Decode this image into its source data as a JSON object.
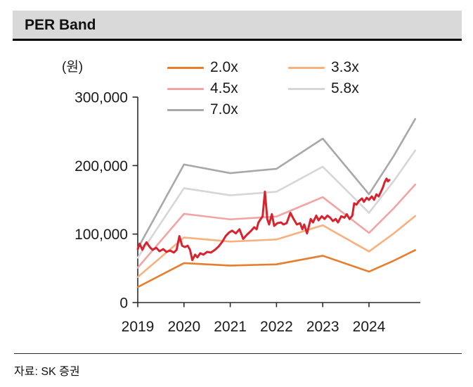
{
  "header": {
    "title": "PER Band"
  },
  "footer": {
    "source": "자료: SK 증권"
  },
  "chart_data": {
    "type": "line",
    "title": "PER Band",
    "unit_label": "(원)",
    "xlabel": "",
    "ylabel": "(원)",
    "grid": false,
    "legend_position": "top",
    "xlim": [
      2019,
      2025.1
    ],
    "ylim": [
      0,
      300000
    ],
    "x_ticks": [
      2019,
      2020,
      2021,
      2022,
      2023,
      2024
    ],
    "y_ticks": [
      0,
      100000,
      200000,
      300000
    ],
    "y_tick_labels": [
      "0",
      "100,000",
      "200,000",
      "300,000"
    ],
    "band_x": [
      2019.0,
      2020.0,
      2021.0,
      2022.0,
      2023.0,
      2024.0,
      2024.53,
      2025.0
    ],
    "series": [
      {
        "name": "2.0x",
        "multiple": 2.0,
        "color": "#e87d2b",
        "values": [
          22600,
          57600,
          54000,
          55800,
          68400,
          45200,
          61000,
          76600
        ]
      },
      {
        "name": "3.3x",
        "multiple": 3.3,
        "color": "#f6b17e",
        "values": [
          37300,
          95000,
          89100,
          92100,
          112900,
          74600,
          100700,
          126400
        ]
      },
      {
        "name": "4.5x",
        "multiple": 4.5,
        "color": "#f2a3a3",
        "values": [
          50900,
          129600,
          121500,
          125600,
          153900,
          101700,
          137300,
          172400
        ]
      },
      {
        "name": "5.8x",
        "multiple": 5.8,
        "color": "#d6d6d6",
        "values": [
          65500,
          167000,
          156600,
          161800,
          198400,
          131100,
          176900,
          222100
        ]
      },
      {
        "name": "7.0x",
        "multiple": 7.0,
        "color": "#a8a8a8",
        "values": [
          79100,
          201600,
          189000,
          195300,
          239400,
          158200,
          213500,
          268100
        ]
      }
    ],
    "price_series": {
      "name": "price",
      "color": "#d8232e",
      "x": [
        2019.0,
        2019.04,
        2019.1,
        2019.14,
        2019.19,
        2019.26,
        2019.32,
        2019.4,
        2019.47,
        2019.55,
        2019.62,
        2019.7,
        2019.78,
        2019.84,
        2019.9,
        2019.96,
        2020.02,
        2020.08,
        2020.13,
        2020.18,
        2020.24,
        2020.29,
        2020.35,
        2020.42,
        2020.5,
        2020.58,
        2020.67,
        2020.75,
        2020.83,
        2020.9,
        2020.97,
        2021.04,
        2021.12,
        2021.2,
        2021.28,
        2021.36,
        2021.44,
        2021.52,
        2021.57,
        2021.61,
        2021.66,
        2021.7,
        2021.75,
        2021.8,
        2021.84,
        2021.9,
        2021.95,
        2022.02,
        2022.1,
        2022.15,
        2022.22,
        2022.3,
        2022.37,
        2022.44,
        2022.51,
        2022.56,
        2022.6,
        2022.66,
        2022.74,
        2022.79,
        2022.86,
        2022.91,
        2022.98,
        2023.04,
        2023.1,
        2023.16,
        2023.22,
        2023.28,
        2023.33,
        2023.4,
        2023.47,
        2023.52,
        2023.58,
        2023.64,
        2023.68,
        2023.73,
        2023.78,
        2023.85,
        2023.89,
        2023.95,
        2024.0,
        2024.06,
        2024.11,
        2024.16,
        2024.21,
        2024.26,
        2024.3,
        2024.34,
        2024.38,
        2024.41,
        2024.44
      ],
      "values": [
        78000,
        86000,
        77000,
        83000,
        88000,
        81000,
        77000,
        80000,
        75000,
        78000,
        74000,
        76000,
        73000,
        77000,
        97000,
        83000,
        81000,
        83000,
        77000,
        62000,
        70000,
        66000,
        72000,
        70000,
        74000,
        73000,
        77000,
        82000,
        89000,
        97000,
        102000,
        105000,
        101000,
        107000,
        93000,
        99000,
        104000,
        110000,
        107000,
        117000,
        122000,
        126000,
        162000,
        122000,
        114000,
        129000,
        112000,
        116000,
        117000,
        114000,
        116000,
        131000,
        122000,
        114000,
        116000,
        107000,
        114000,
        101000,
        122000,
        117000,
        127000,
        120000,
        126000,
        122000,
        127000,
        124000,
        119000,
        122000,
        117000,
        126000,
        124000,
        129000,
        122000,
        127000,
        145000,
        143000,
        148000,
        152000,
        147000,
        153000,
        150000,
        155000,
        150000,
        158000,
        155000,
        162000,
        168000,
        176000,
        181000,
        177000,
        179000
      ]
    },
    "legend_columns": [
      [
        "2.0x",
        "4.5x",
        "7.0x"
      ],
      [
        "3.3x",
        "5.8x"
      ]
    ]
  }
}
